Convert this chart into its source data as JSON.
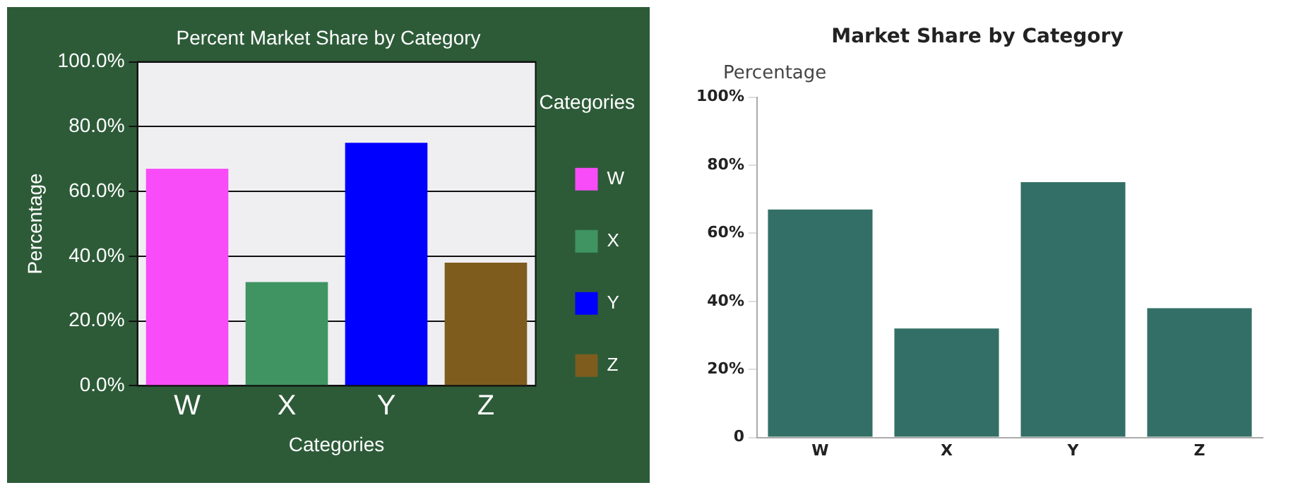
{
  "chart_data": [
    {
      "type": "bar",
      "title": "Percent Market Share by Category",
      "xlabel": "Categories",
      "ylabel": "Percentage",
      "legend_title": "Categories",
      "categories": [
        "W",
        "X",
        "Y",
        "Z"
      ],
      "stacked": true,
      "series": [
        {
          "name": "W",
          "color": "#f74cf7",
          "values": [
            67,
            null,
            null,
            null
          ]
        },
        {
          "name": "X",
          "color": "#3f9461",
          "values": [
            null,
            32,
            null,
            null
          ]
        },
        {
          "name": "Y",
          "color": "#0000ff",
          "values": [
            null,
            null,
            75,
            null
          ]
        },
        {
          "name": "Z",
          "color": "#7d5c1e",
          "values": [
            null,
            null,
            null,
            38
          ]
        }
      ],
      "ylim": [
        0,
        100
      ],
      "yticks": [
        {
          "value": 0,
          "label": "0.0%"
        },
        {
          "value": 20,
          "label": "20.0%"
        },
        {
          "value": 40,
          "label": "40.0%"
        },
        {
          "value": 60,
          "label": "60.0%"
        },
        {
          "value": 80,
          "label": "80.0%"
        },
        {
          "value": 100,
          "label": "100.0%"
        }
      ],
      "grid": "y",
      "legend": "right"
    },
    {
      "type": "bar",
      "title": "Market Share by Category",
      "ylabel": "Percentage",
      "categories": [
        "W",
        "X",
        "Y",
        "Z"
      ],
      "values": [
        67,
        32,
        75,
        38
      ],
      "color": "#336f66",
      "ylim": [
        0,
        100
      ],
      "yticks": [
        0,
        {
          "value": 20,
          "label": "20%"
        },
        {
          "value": 40,
          "label": "40%"
        },
        {
          "value": 60,
          "label": "60%"
        },
        {
          "value": 80,
          "label": "80%"
        },
        {
          "value": 100,
          "label": "100%"
        }
      ],
      "grid": false
    }
  ]
}
